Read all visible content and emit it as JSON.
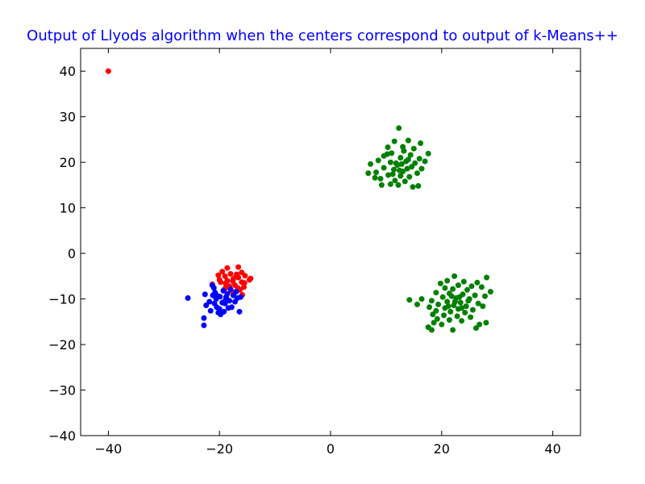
{
  "colors": {
    "title": "#0000ff",
    "series_red": "#ff0000",
    "series_blue": "#0000ff",
    "series_green": "#008000"
  },
  "chart_data": {
    "type": "scatter",
    "title": "Output of Llyods algorithm when the centers correspond to output of k-Means++",
    "xlabel": "",
    "ylabel": "",
    "xlim": [
      -45,
      45
    ],
    "ylim": [
      -40,
      45
    ],
    "xticks": [
      -40,
      -20,
      0,
      20,
      40
    ],
    "yticks": [
      -40,
      -30,
      -20,
      -10,
      0,
      10,
      20,
      30,
      40
    ],
    "xtick_labels": [
      "−40",
      "−20",
      "0",
      "20",
      "40"
    ],
    "ytick_labels": [
      "−40",
      "−30",
      "−20",
      "−10",
      "0",
      "10",
      "20",
      "30",
      "40"
    ],
    "grid": false,
    "legend": "none",
    "series": [
      {
        "color": "#ff0000",
        "points": [
          [
            -40,
            40
          ],
          [
            -18.6,
            -3.2
          ],
          [
            -16.6,
            -3.0
          ],
          [
            -19.5,
            -4.0
          ],
          [
            -16.0,
            -4.2
          ],
          [
            -18.0,
            -4.5
          ],
          [
            -20.2,
            -4.8
          ],
          [
            -15.4,
            -4.9
          ],
          [
            -19.0,
            -5.0
          ],
          [
            -17.0,
            -5.1
          ],
          [
            -16.6,
            -5.3
          ],
          [
            -14.4,
            -5.5
          ],
          [
            -14.6,
            -5.8
          ],
          [
            -20.0,
            -5.8
          ],
          [
            -18.6,
            -6.0
          ],
          [
            -17.6,
            -6.1
          ],
          [
            -16.0,
            -6.3
          ],
          [
            -15.5,
            -6.5
          ],
          [
            -18.9,
            -6.6
          ],
          [
            -21.3,
            -6.8
          ],
          [
            -17.2,
            -7.0
          ],
          [
            -15.6,
            -7.4
          ],
          [
            -16.7,
            -7.6
          ],
          [
            -19.0,
            -7.7
          ],
          [
            -16.3,
            -8.0
          ],
          [
            -17.9,
            -8.2
          ],
          [
            -15.9,
            -9.1
          ],
          [
            -17.5,
            -5.6
          ],
          [
            -18.2,
            -7.2
          ],
          [
            -19.8,
            -6.3
          ],
          [
            -16.9,
            -4.6
          ]
        ]
      },
      {
        "color": "#0000ff",
        "points": [
          [
            -25.7,
            -9.8
          ],
          [
            -22.8,
            -14.2
          ],
          [
            -22.8,
            -15.8
          ],
          [
            -22.6,
            -9.0
          ],
          [
            -22.4,
            -11.4
          ],
          [
            -21.6,
            -12.6
          ],
          [
            -21.3,
            -7.0
          ],
          [
            -21.0,
            -7.6
          ],
          [
            -20.8,
            -8.6
          ],
          [
            -20.6,
            -10.0
          ],
          [
            -20.5,
            -11.8
          ],
          [
            -20.4,
            -9.3
          ],
          [
            -20.0,
            -12.2
          ],
          [
            -19.8,
            -13.4
          ],
          [
            -19.5,
            -10.8
          ],
          [
            -19.3,
            -8.2
          ],
          [
            -19.2,
            -12.8
          ],
          [
            -19.0,
            -11.0
          ],
          [
            -18.8,
            -9.6
          ],
          [
            -18.6,
            -8.9
          ],
          [
            -18.4,
            -12.0
          ],
          [
            -18.2,
            -10.4
          ],
          [
            -18.0,
            -7.9
          ],
          [
            -17.8,
            -11.8
          ],
          [
            -17.5,
            -9.2
          ],
          [
            -17.2,
            -10.6
          ],
          [
            -17.0,
            -8.4
          ],
          [
            -16.8,
            -9.8
          ],
          [
            -16.4,
            -12.8
          ],
          [
            -16.2,
            -9.6
          ],
          [
            -21.8,
            -10.6
          ],
          [
            -20.9,
            -11.0
          ],
          [
            -19.9,
            -9.5
          ],
          [
            -18.9,
            -10.2
          ],
          [
            -21.2,
            -9.2
          ],
          [
            -20.2,
            -13.0
          ]
        ]
      },
      {
        "color": "#008000",
        "points": [
          [
            12.3,
            27.5
          ],
          [
            14.0,
            24.8
          ],
          [
            11.5,
            24.6
          ],
          [
            16.2,
            24.2
          ],
          [
            10.3,
            23.3
          ],
          [
            15.0,
            23.0
          ],
          [
            13.2,
            22.5
          ],
          [
            17.6,
            21.9
          ],
          [
            11.0,
            22.0
          ],
          [
            9.6,
            21.4
          ],
          [
            14.4,
            21.6
          ],
          [
            12.6,
            21.0
          ],
          [
            16.0,
            20.8
          ],
          [
            8.6,
            20.4
          ],
          [
            10.8,
            20.0
          ],
          [
            13.6,
            20.2
          ],
          [
            15.2,
            19.8
          ],
          [
            7.2,
            19.6
          ],
          [
            12.0,
            19.4
          ],
          [
            14.6,
            19.0
          ],
          [
            9.6,
            18.8
          ],
          [
            16.4,
            18.6
          ],
          [
            11.4,
            18.4
          ],
          [
            13.0,
            18.0
          ],
          [
            8.2,
            17.8
          ],
          [
            15.6,
            17.6
          ],
          [
            6.8,
            17.6
          ],
          [
            10.4,
            17.2
          ],
          [
            12.6,
            17.0
          ],
          [
            14.2,
            16.8
          ],
          [
            9.0,
            16.4
          ],
          [
            11.6,
            16.0
          ],
          [
            13.4,
            15.8
          ],
          [
            10.8,
            15.2
          ],
          [
            12.2,
            15.0
          ],
          [
            15.8,
            14.8
          ],
          [
            14.8,
            14.6
          ],
          [
            9.2,
            15.0
          ],
          [
            8.0,
            16.6
          ],
          [
            17.0,
            20.2
          ],
          [
            10.2,
            21.8
          ],
          [
            13.0,
            23.4
          ],
          [
            11.8,
            19.8
          ],
          [
            12.8,
            19.6
          ],
          [
            13.8,
            18.6
          ],
          [
            11.2,
            17.4
          ],
          [
            14.0,
            20.6
          ],
          [
            12.4,
            18.2
          ],
          [
            22.3,
            -5.0
          ],
          [
            28.1,
            -5.3
          ],
          [
            21.0,
            -6.0
          ],
          [
            24.0,
            -6.2
          ],
          [
            26.4,
            -6.4
          ],
          [
            19.8,
            -6.6
          ],
          [
            23.0,
            -7.0
          ],
          [
            25.4,
            -7.2
          ],
          [
            27.2,
            -7.4
          ],
          [
            20.6,
            -7.6
          ],
          [
            22.0,
            -7.8
          ],
          [
            24.6,
            -8.0
          ],
          [
            28.8,
            -8.4
          ],
          [
            19.0,
            -8.6
          ],
          [
            21.4,
            -8.8
          ],
          [
            23.8,
            -9.0
          ],
          [
            26.0,
            -9.2
          ],
          [
            27.8,
            -9.4
          ],
          [
            20.2,
            -9.6
          ],
          [
            22.6,
            -9.8
          ],
          [
            25.0,
            -10.0
          ],
          [
            16.4,
            -10.0
          ],
          [
            14.2,
            -10.2
          ],
          [
            18.2,
            -10.4
          ],
          [
            21.0,
            -10.6
          ],
          [
            23.4,
            -10.8
          ],
          [
            26.6,
            -11.0
          ],
          [
            19.4,
            -11.2
          ],
          [
            15.6,
            -11.2
          ],
          [
            22.2,
            -11.4
          ],
          [
            24.4,
            -11.6
          ],
          [
            27.4,
            -11.6
          ],
          [
            17.8,
            -11.8
          ],
          [
            20.6,
            -12.0
          ],
          [
            23.0,
            -12.2
          ],
          [
            25.6,
            -12.4
          ],
          [
            19.0,
            -12.6
          ],
          [
            21.6,
            -12.8
          ],
          [
            24.2,
            -13.0
          ],
          [
            18.4,
            -13.4
          ],
          [
            20.4,
            -13.6
          ],
          [
            22.8,
            -13.8
          ],
          [
            25.2,
            -14.0
          ],
          [
            19.2,
            -14.4
          ],
          [
            21.4,
            -14.6
          ],
          [
            23.6,
            -14.8
          ],
          [
            18.6,
            -15.2
          ],
          [
            28.0,
            -15.2
          ],
          [
            26.8,
            -15.6
          ],
          [
            20.0,
            -15.6
          ],
          [
            17.6,
            -16.2
          ],
          [
            22.0,
            -16.8
          ],
          [
            26.2,
            -16.4
          ],
          [
            18.2,
            -16.8
          ],
          [
            21.8,
            -9.4
          ],
          [
            23.2,
            -9.6
          ],
          [
            22.4,
            -10.6
          ],
          [
            24.8,
            -10.4
          ],
          [
            21.2,
            -11.6
          ],
          [
            23.6,
            -12.0
          ]
        ]
      }
    ]
  }
}
